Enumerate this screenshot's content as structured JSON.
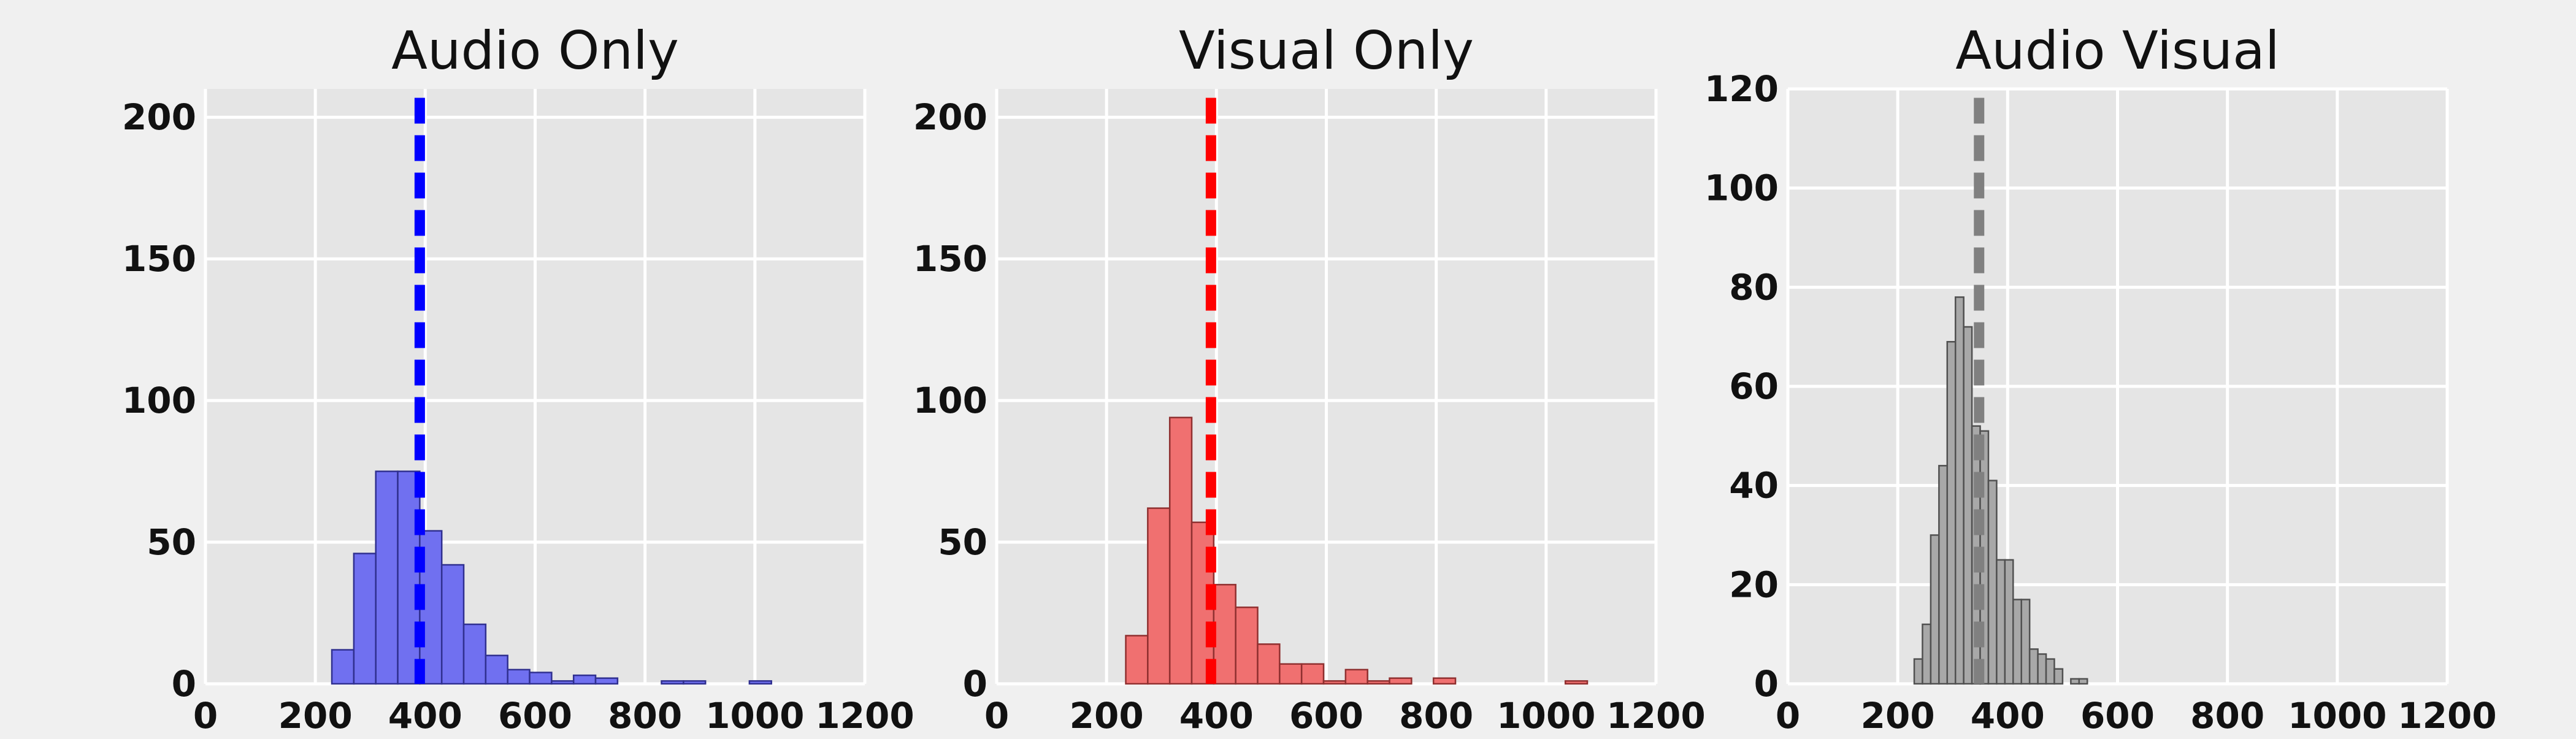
{
  "chart_data": [
    {
      "type": "histogram",
      "title": "Audio Only",
      "xlabel": "",
      "ylabel": "",
      "xlim": [
        0,
        1200
      ],
      "ylim": [
        0,
        210
      ],
      "xticks": [
        0,
        200,
        400,
        600,
        800,
        1000,
        1200
      ],
      "yticks": [
        0,
        50,
        100,
        150,
        200
      ],
      "grid": true,
      "color": "#7070f0",
      "edge_color": "#303090",
      "line_color": "#0000ff",
      "mean_line_x": 390,
      "bins": [
        {
          "start": 230,
          "end": 270,
          "count": 12
        },
        {
          "start": 270,
          "end": 310,
          "count": 46
        },
        {
          "start": 310,
          "end": 350,
          "count": 75
        },
        {
          "start": 350,
          "end": 390,
          "count": 75
        },
        {
          "start": 390,
          "end": 430,
          "count": 54
        },
        {
          "start": 430,
          "end": 470,
          "count": 42
        },
        {
          "start": 470,
          "end": 510,
          "count": 21
        },
        {
          "start": 510,
          "end": 550,
          "count": 10
        },
        {
          "start": 550,
          "end": 590,
          "count": 5
        },
        {
          "start": 590,
          "end": 630,
          "count": 4
        },
        {
          "start": 630,
          "end": 670,
          "count": 1
        },
        {
          "start": 670,
          "end": 710,
          "count": 3
        },
        {
          "start": 710,
          "end": 750,
          "count": 2
        },
        {
          "start": 830,
          "end": 870,
          "count": 1
        },
        {
          "start": 870,
          "end": 910,
          "count": 1
        },
        {
          "start": 990,
          "end": 1030,
          "count": 1
        }
      ]
    },
    {
      "type": "histogram",
      "title": "Visual Only",
      "xlabel": "",
      "ylabel": "",
      "xlim": [
        0,
        1200
      ],
      "ylim": [
        0,
        210
      ],
      "xticks": [
        0,
        200,
        400,
        600,
        800,
        1000,
        1200
      ],
      "yticks": [
        0,
        50,
        100,
        150,
        200
      ],
      "grid": true,
      "color": "#f07070",
      "edge_color": "#903030",
      "line_color": "#ff0000",
      "mean_line_x": 390,
      "bins": [
        {
          "start": 235,
          "end": 275,
          "count": 17
        },
        {
          "start": 275,
          "end": 315,
          "count": 62
        },
        {
          "start": 315,
          "end": 355,
          "count": 94
        },
        {
          "start": 355,
          "end": 395,
          "count": 57
        },
        {
          "start": 395,
          "end": 435,
          "count": 35
        },
        {
          "start": 435,
          "end": 475,
          "count": 27
        },
        {
          "start": 475,
          "end": 515,
          "count": 14
        },
        {
          "start": 515,
          "end": 555,
          "count": 7
        },
        {
          "start": 555,
          "end": 595,
          "count": 7
        },
        {
          "start": 595,
          "end": 635,
          "count": 1
        },
        {
          "start": 635,
          "end": 675,
          "count": 5
        },
        {
          "start": 675,
          "end": 715,
          "count": 1
        },
        {
          "start": 715,
          "end": 755,
          "count": 2
        },
        {
          "start": 795,
          "end": 835,
          "count": 2
        },
        {
          "start": 1035,
          "end": 1075,
          "count": 1
        }
      ]
    },
    {
      "type": "histogram",
      "title": "Audio Visual",
      "xlabel": "",
      "ylabel": "",
      "xlim": [
        0,
        1200
      ],
      "ylim": [
        0,
        120
      ],
      "xticks": [
        0,
        200,
        400,
        600,
        800,
        1000,
        1200
      ],
      "yticks": [
        0,
        20,
        40,
        60,
        80,
        100,
        120
      ],
      "grid": true,
      "color": "#a8a8a8",
      "edge_color": "#505050",
      "line_color": "#808080",
      "mean_line_x": 348,
      "bins": [
        {
          "start": 230,
          "end": 245,
          "count": 5
        },
        {
          "start": 245,
          "end": 260,
          "count": 12
        },
        {
          "start": 260,
          "end": 275,
          "count": 30
        },
        {
          "start": 275,
          "end": 290,
          "count": 44
        },
        {
          "start": 290,
          "end": 305,
          "count": 69
        },
        {
          "start": 305,
          "end": 320,
          "count": 78
        },
        {
          "start": 320,
          "end": 335,
          "count": 72
        },
        {
          "start": 335,
          "end": 350,
          "count": 52
        },
        {
          "start": 350,
          "end": 365,
          "count": 51
        },
        {
          "start": 365,
          "end": 380,
          "count": 41
        },
        {
          "start": 380,
          "end": 395,
          "count": 25
        },
        {
          "start": 395,
          "end": 410,
          "count": 25
        },
        {
          "start": 410,
          "end": 425,
          "count": 17
        },
        {
          "start": 425,
          "end": 440,
          "count": 17
        },
        {
          "start": 440,
          "end": 455,
          "count": 7
        },
        {
          "start": 455,
          "end": 470,
          "count": 6
        },
        {
          "start": 470,
          "end": 485,
          "count": 5
        },
        {
          "start": 485,
          "end": 500,
          "count": 3
        },
        {
          "start": 515,
          "end": 530,
          "count": 1
        },
        {
          "start": 530,
          "end": 545,
          "count": 1
        }
      ]
    }
  ]
}
